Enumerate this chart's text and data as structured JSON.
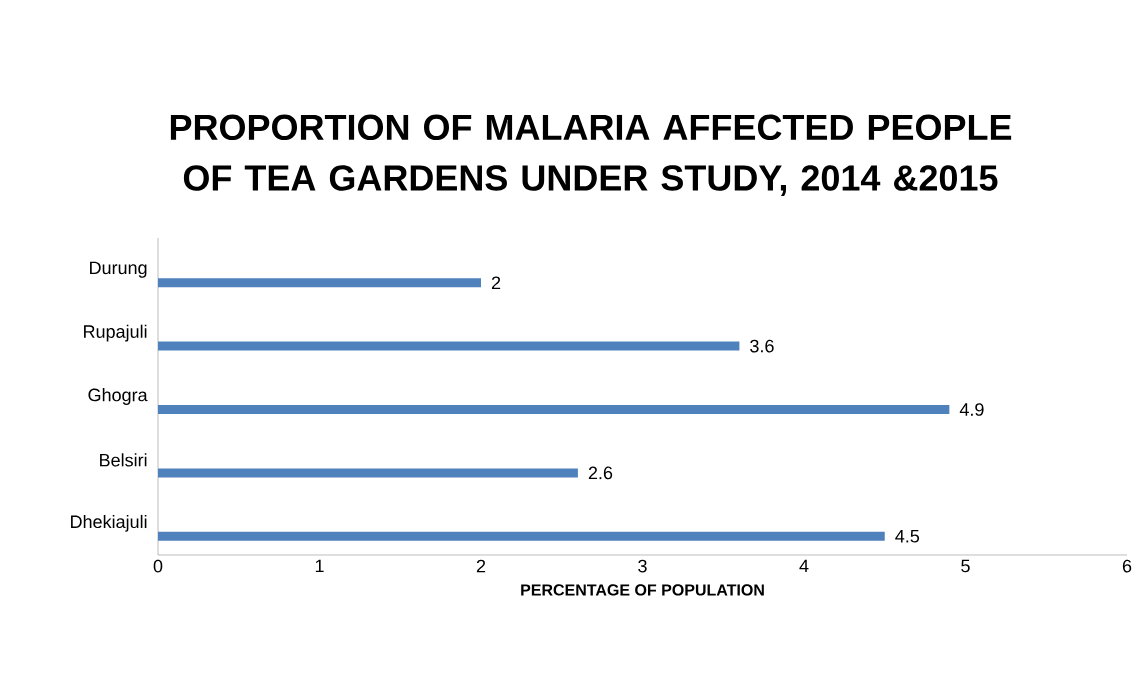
{
  "chart_data": {
    "type": "bar",
    "orientation": "horizontal",
    "title": "PROPORTION OF MALARIA AFFECTED PEOPLE OF TEA GARDENS UNDER STUDY, 2014 &2015",
    "xlabel": "PERCENTAGE OF POPULATION",
    "categories": [
      "Durung",
      "Rupajuli",
      "Ghogra",
      "Belsiri",
      "Dhekiajuli"
    ],
    "values": [
      2,
      3.6,
      4.9,
      2.6,
      4.5
    ],
    "color": "#4f81bd",
    "xlim": [
      0,
      6
    ],
    "xticks": [
      0,
      1,
      2,
      3,
      4,
      5,
      6
    ],
    "data_labels": true,
    "grid": false
  }
}
